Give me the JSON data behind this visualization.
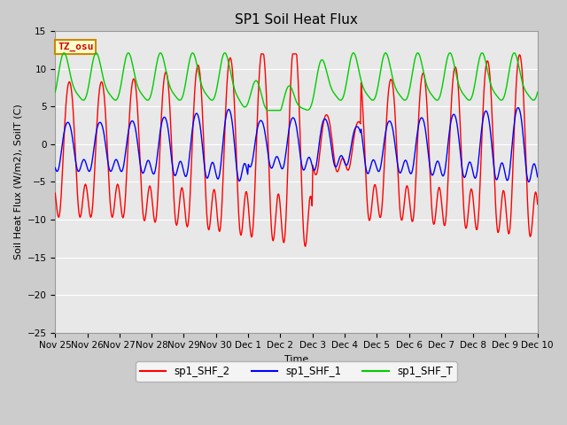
{
  "title": "SP1 Soil Heat Flux",
  "xlabel": "Time",
  "ylabel": "Soil Heat Flux (W/m2), SoilT (C)",
  "ylim": [
    -25,
    15
  ],
  "line_colors": {
    "shf2": "#ff0000",
    "shf1": "#0000ff",
    "shft": "#00cc00"
  },
  "legend_labels": [
    "sp1_SHF_2",
    "sp1_SHF_1",
    "sp1_SHF_T"
  ],
  "tz_label": "TZ_osu",
  "tz_bg": "#ffffcc",
  "tz_border": "#cc8800",
  "tz_text_color": "#cc0000",
  "tick_labels": [
    "Nov 25",
    "Nov 26",
    "Nov 27",
    "Nov 28",
    "Nov 29",
    "Nov 30",
    "Dec 1",
    "Dec 2",
    "Dec 3",
    "Dec 4",
    "Dec 5",
    "Dec 6",
    "Dec 7",
    "Dec 8",
    "Dec 9",
    "Dec 10"
  ],
  "title_fontsize": 11,
  "axis_fontsize": 8,
  "tick_fontsize": 7.5
}
